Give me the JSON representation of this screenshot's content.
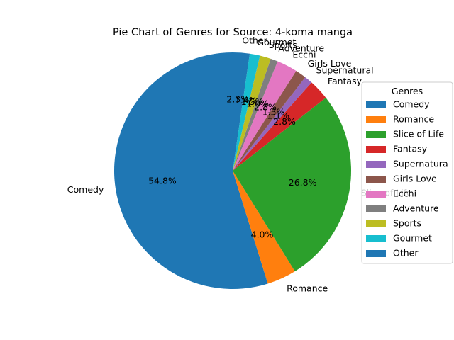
{
  "chart_data": {
    "type": "pie",
    "title": "Pie Chart of Genres for Source: 4-koma manga",
    "legend_title": "Genres",
    "legend_position": "right",
    "start_angle_deg": 90,
    "direction": "counterclockwise",
    "slices": [
      {
        "label": "Comedy",
        "value": 54.8,
        "pct_text": "54.8%",
        "color": "#1f77b4"
      },
      {
        "label": "Romance",
        "value": 4.0,
        "pct_text": "4.0%",
        "color": "#ff7f0e"
      },
      {
        "label": "Slice of Life",
        "value": 26.8,
        "pct_text": "26.8%",
        "color": "#2ca02c"
      },
      {
        "label": "Fantasy",
        "value": 2.8,
        "pct_text": "2.8%",
        "color": "#d62728"
      },
      {
        "label": "Supernatural",
        "value": 1.1,
        "pct_text": "1.1%",
        "color": "#9467bd"
      },
      {
        "label": "Girls Love",
        "value": 1.5,
        "pct_text": "1.5%",
        "color": "#8c564b"
      },
      {
        "label": "Ecchi",
        "value": 2.8,
        "pct_text": "2.8%",
        "color": "#e377c2"
      },
      {
        "label": "Adventure",
        "value": 1.0,
        "pct_text": "1.0%",
        "color": "#7f7f7f"
      },
      {
        "label": "Sports",
        "value": 1.5,
        "pct_text": "1.5%",
        "color": "#bcbd22"
      },
      {
        "label": "Gourmet",
        "value": 1.4,
        "pct_text": "1.4%",
        "color": "#17becf"
      },
      {
        "label": "Other",
        "value": 2.3,
        "pct_text": "2.3%",
        "color": "#1f77b4"
      }
    ],
    "legend_labels": [
      "Comedy",
      "Romance",
      "Slice of Life",
      "Fantasy",
      "Supernatura",
      "Girls Love",
      "Ecchi",
      "Adventure",
      "Sports",
      "Gourmet",
      "Other"
    ]
  }
}
